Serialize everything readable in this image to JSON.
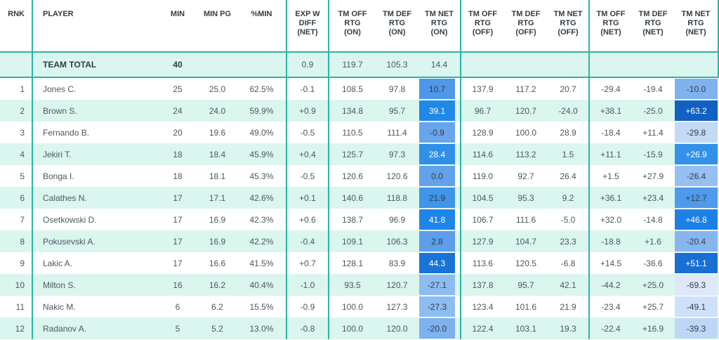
{
  "colors": {
    "teal_line": "#2ab7a0",
    "mint_row": "#dbf5ef",
    "header_text": "#333d45",
    "body_text": "#4d575f",
    "highlight_text_light": "#ffffff"
  },
  "table": {
    "columns": {
      "rnk": "RNK",
      "player": "PLAYER",
      "min": "MIN",
      "min_pg": "MIN PG",
      "pct_min": "%MIN",
      "exp_w_diff": "EXP W\nDIFF\n(NET)",
      "off_on": "TM OFF\nRTG\n(ON)",
      "def_on": "TM DEF\nRTG\n(ON)",
      "net_on": "TM NET\nRTG\n(ON)",
      "off_off": "TM OFF\nRTG\n(OFF)",
      "def_off": "TM DEF\nRTG\n(OFF)",
      "net_off": "TM NET\nRTG\n(OFF)",
      "off_net": "TM OFF\nRTG\n(NET)",
      "def_net": "TM DEF\nRTG\n(NET)",
      "net_net": "TM NET\nRTG\n(NET)"
    },
    "team_total": {
      "label": "TEAM TOTAL",
      "min": "40",
      "exp_w_diff": "0.9",
      "off_on": "119.7",
      "def_on": "105.3",
      "net_on": "14.4"
    },
    "rows": [
      {
        "rnk": "1",
        "player": "Jones C.",
        "min": "25",
        "min_pg": "25.0",
        "pct_min": "62.5%",
        "exp_w_diff": "-0.1",
        "off_on": "108.5",
        "def_on": "97.8",
        "net_on": "10.7",
        "net_on_bg": "#4f98e9",
        "net_on_white": false,
        "off_off": "137.9",
        "def_off": "117.2",
        "net_off": "20.7",
        "off_net": "-29.4",
        "def_net": "-19.4",
        "net_net": "-10.0",
        "net_net_bg": "#7fb2ef",
        "net_net_white": false
      },
      {
        "rnk": "2",
        "player": "Brown S.",
        "min": "24",
        "min_pg": "24.0",
        "pct_min": "59.9%",
        "exp_w_diff": "+0.9",
        "off_on": "134.8",
        "def_on": "95.7",
        "net_on": "39.1",
        "net_on_bg": "#2089e8",
        "net_on_white": true,
        "off_off": "96.7",
        "def_off": "120.7",
        "net_off": "-24.0",
        "off_net": "+38.1",
        "def_net": "-25.0",
        "net_net": "+63.2",
        "net_net_bg": "#1260c1",
        "net_net_white": true
      },
      {
        "rnk": "3",
        "player": "Fernando B.",
        "min": "20",
        "min_pg": "19.6",
        "pct_min": "49.0%",
        "exp_w_diff": "-0.5",
        "off_on": "110.5",
        "def_on": "111.4",
        "net_on": "-0.9",
        "net_on_bg": "#68a5ec",
        "net_on_white": false,
        "off_off": "128.9",
        "def_off": "100.0",
        "net_off": "28.9",
        "off_net": "-18.4",
        "def_net": "+11.4",
        "net_net": "-29.8",
        "net_net_bg": "#c3daf7",
        "net_net_white": false
      },
      {
        "rnk": "4",
        "player": "Jekiri T.",
        "min": "18",
        "min_pg": "18.4",
        "pct_min": "45.9%",
        "exp_w_diff": "+0.4",
        "off_on": "125.7",
        "def_on": "97.3",
        "net_on": "28.4",
        "net_on_bg": "#2e90e9",
        "net_on_white": true,
        "off_off": "114.6",
        "def_off": "113.2",
        "net_off": "1.5",
        "off_net": "+11.1",
        "def_net": "-15.9",
        "net_net": "+26.9",
        "net_net_bg": "#3391e9",
        "net_net_white": true
      },
      {
        "rnk": "5",
        "player": "Bonga I.",
        "min": "18",
        "min_pg": "18.1",
        "pct_min": "45.3%",
        "exp_w_diff": "-0.5",
        "off_on": "120.6",
        "def_on": "120.6",
        "net_on": "0.0",
        "net_on_bg": "#62a1eb",
        "net_on_white": false,
        "off_off": "119.0",
        "def_off": "92.7",
        "net_off": "26.4",
        "off_net": "+1.5",
        "def_net": "+27.9",
        "net_net": "-26.4",
        "net_net_bg": "#97c0f2",
        "net_net_white": false
      },
      {
        "rnk": "6",
        "player": "Calathes N.",
        "min": "17",
        "min_pg": "17.1",
        "pct_min": "42.6%",
        "exp_w_diff": "+0.1",
        "off_on": "140.6",
        "def_on": "118.8",
        "net_on": "21.9",
        "net_on_bg": "#3e95e9",
        "net_on_white": false,
        "off_off": "104.5",
        "def_off": "95.3",
        "net_off": "9.2",
        "off_net": "+36.1",
        "def_net": "+23.4",
        "net_net": "+12.7",
        "net_net_bg": "#4f9aea",
        "net_net_white": false
      },
      {
        "rnk": "7",
        "player": "Osetkowski D.",
        "min": "17",
        "min_pg": "16.9",
        "pct_min": "42.3%",
        "exp_w_diff": "+0.6",
        "off_on": "138.7",
        "def_on": "96.9",
        "net_on": "41.8",
        "net_on_bg": "#1e86e8",
        "net_on_white": true,
        "off_off": "106.7",
        "def_off": "111.6",
        "net_off": "-5.0",
        "off_net": "+32.0",
        "def_net": "-14.8",
        "net_net": "+46.8",
        "net_net_bg": "#1d80e4",
        "net_net_white": true
      },
      {
        "rnk": "8",
        "player": "Pokusevski A.",
        "min": "17",
        "min_pg": "16.9",
        "pct_min": "42.2%",
        "exp_w_diff": "-0.4",
        "off_on": "109.1",
        "def_on": "106.3",
        "net_on": "2.8",
        "net_on_bg": "#5c9eea",
        "net_on_white": false,
        "off_off": "127.9",
        "def_off": "104.7",
        "net_off": "23.3",
        "off_net": "-18.8",
        "def_net": "+1.6",
        "net_net": "-20.4",
        "net_net_bg": "#86b6f0",
        "net_net_white": false
      },
      {
        "rnk": "9",
        "player": "Lakic A.",
        "min": "17",
        "min_pg": "16.6",
        "pct_min": "41.5%",
        "exp_w_diff": "+0.7",
        "off_on": "128.1",
        "def_on": "83.9",
        "net_on": "44.3",
        "net_on_bg": "#1874d7",
        "net_on_white": true,
        "off_off": "113.6",
        "def_off": "120.5",
        "net_off": "-6.8",
        "off_net": "+14.5",
        "def_net": "-36.6",
        "net_net": "+51.1",
        "net_net_bg": "#1970d3",
        "net_net_white": true
      },
      {
        "rnk": "10",
        "player": "Milton S.",
        "min": "16",
        "min_pg": "16.2",
        "pct_min": "40.4%",
        "exp_w_diff": "-1.0",
        "off_on": "93.5",
        "def_on": "120.7",
        "net_on": "-27.1",
        "net_on_bg": "#8dbcf1",
        "net_on_white": false,
        "off_off": "137.8",
        "def_off": "95.7",
        "net_off": "42.1",
        "off_net": "-44.2",
        "def_net": "+25.0",
        "net_net": "-69.3",
        "net_net_bg": "#dde9fb",
        "net_net_white": false
      },
      {
        "rnk": "11",
        "player": "Nakic M.",
        "min": "6",
        "min_pg": "6.2",
        "pct_min": "15.5%",
        "exp_w_diff": "-0.9",
        "off_on": "100.0",
        "def_on": "127.3",
        "net_on": "-27.3",
        "net_on_bg": "#8dbcf1",
        "net_on_white": false,
        "off_off": "123.4",
        "def_off": "101.6",
        "net_off": "21.9",
        "off_net": "-23.4",
        "def_net": "+25.7",
        "net_net": "-49.1",
        "net_net_bg": "#cfe1f9",
        "net_net_white": false
      },
      {
        "rnk": "12",
        "player": "Radanov A.",
        "min": "5",
        "min_pg": "5.2",
        "pct_min": "13.0%",
        "exp_w_diff": "-0.8",
        "off_on": "100.0",
        "def_on": "120.0",
        "net_on": "-20.0",
        "net_on_bg": "#7db1ef",
        "net_on_white": false,
        "off_off": "122.4",
        "def_off": "103.1",
        "net_off": "19.3",
        "off_net": "-22.4",
        "def_net": "+16.9",
        "net_net": "-39.3",
        "net_net_bg": "#bed7f7",
        "net_net_white": false
      }
    ]
  }
}
